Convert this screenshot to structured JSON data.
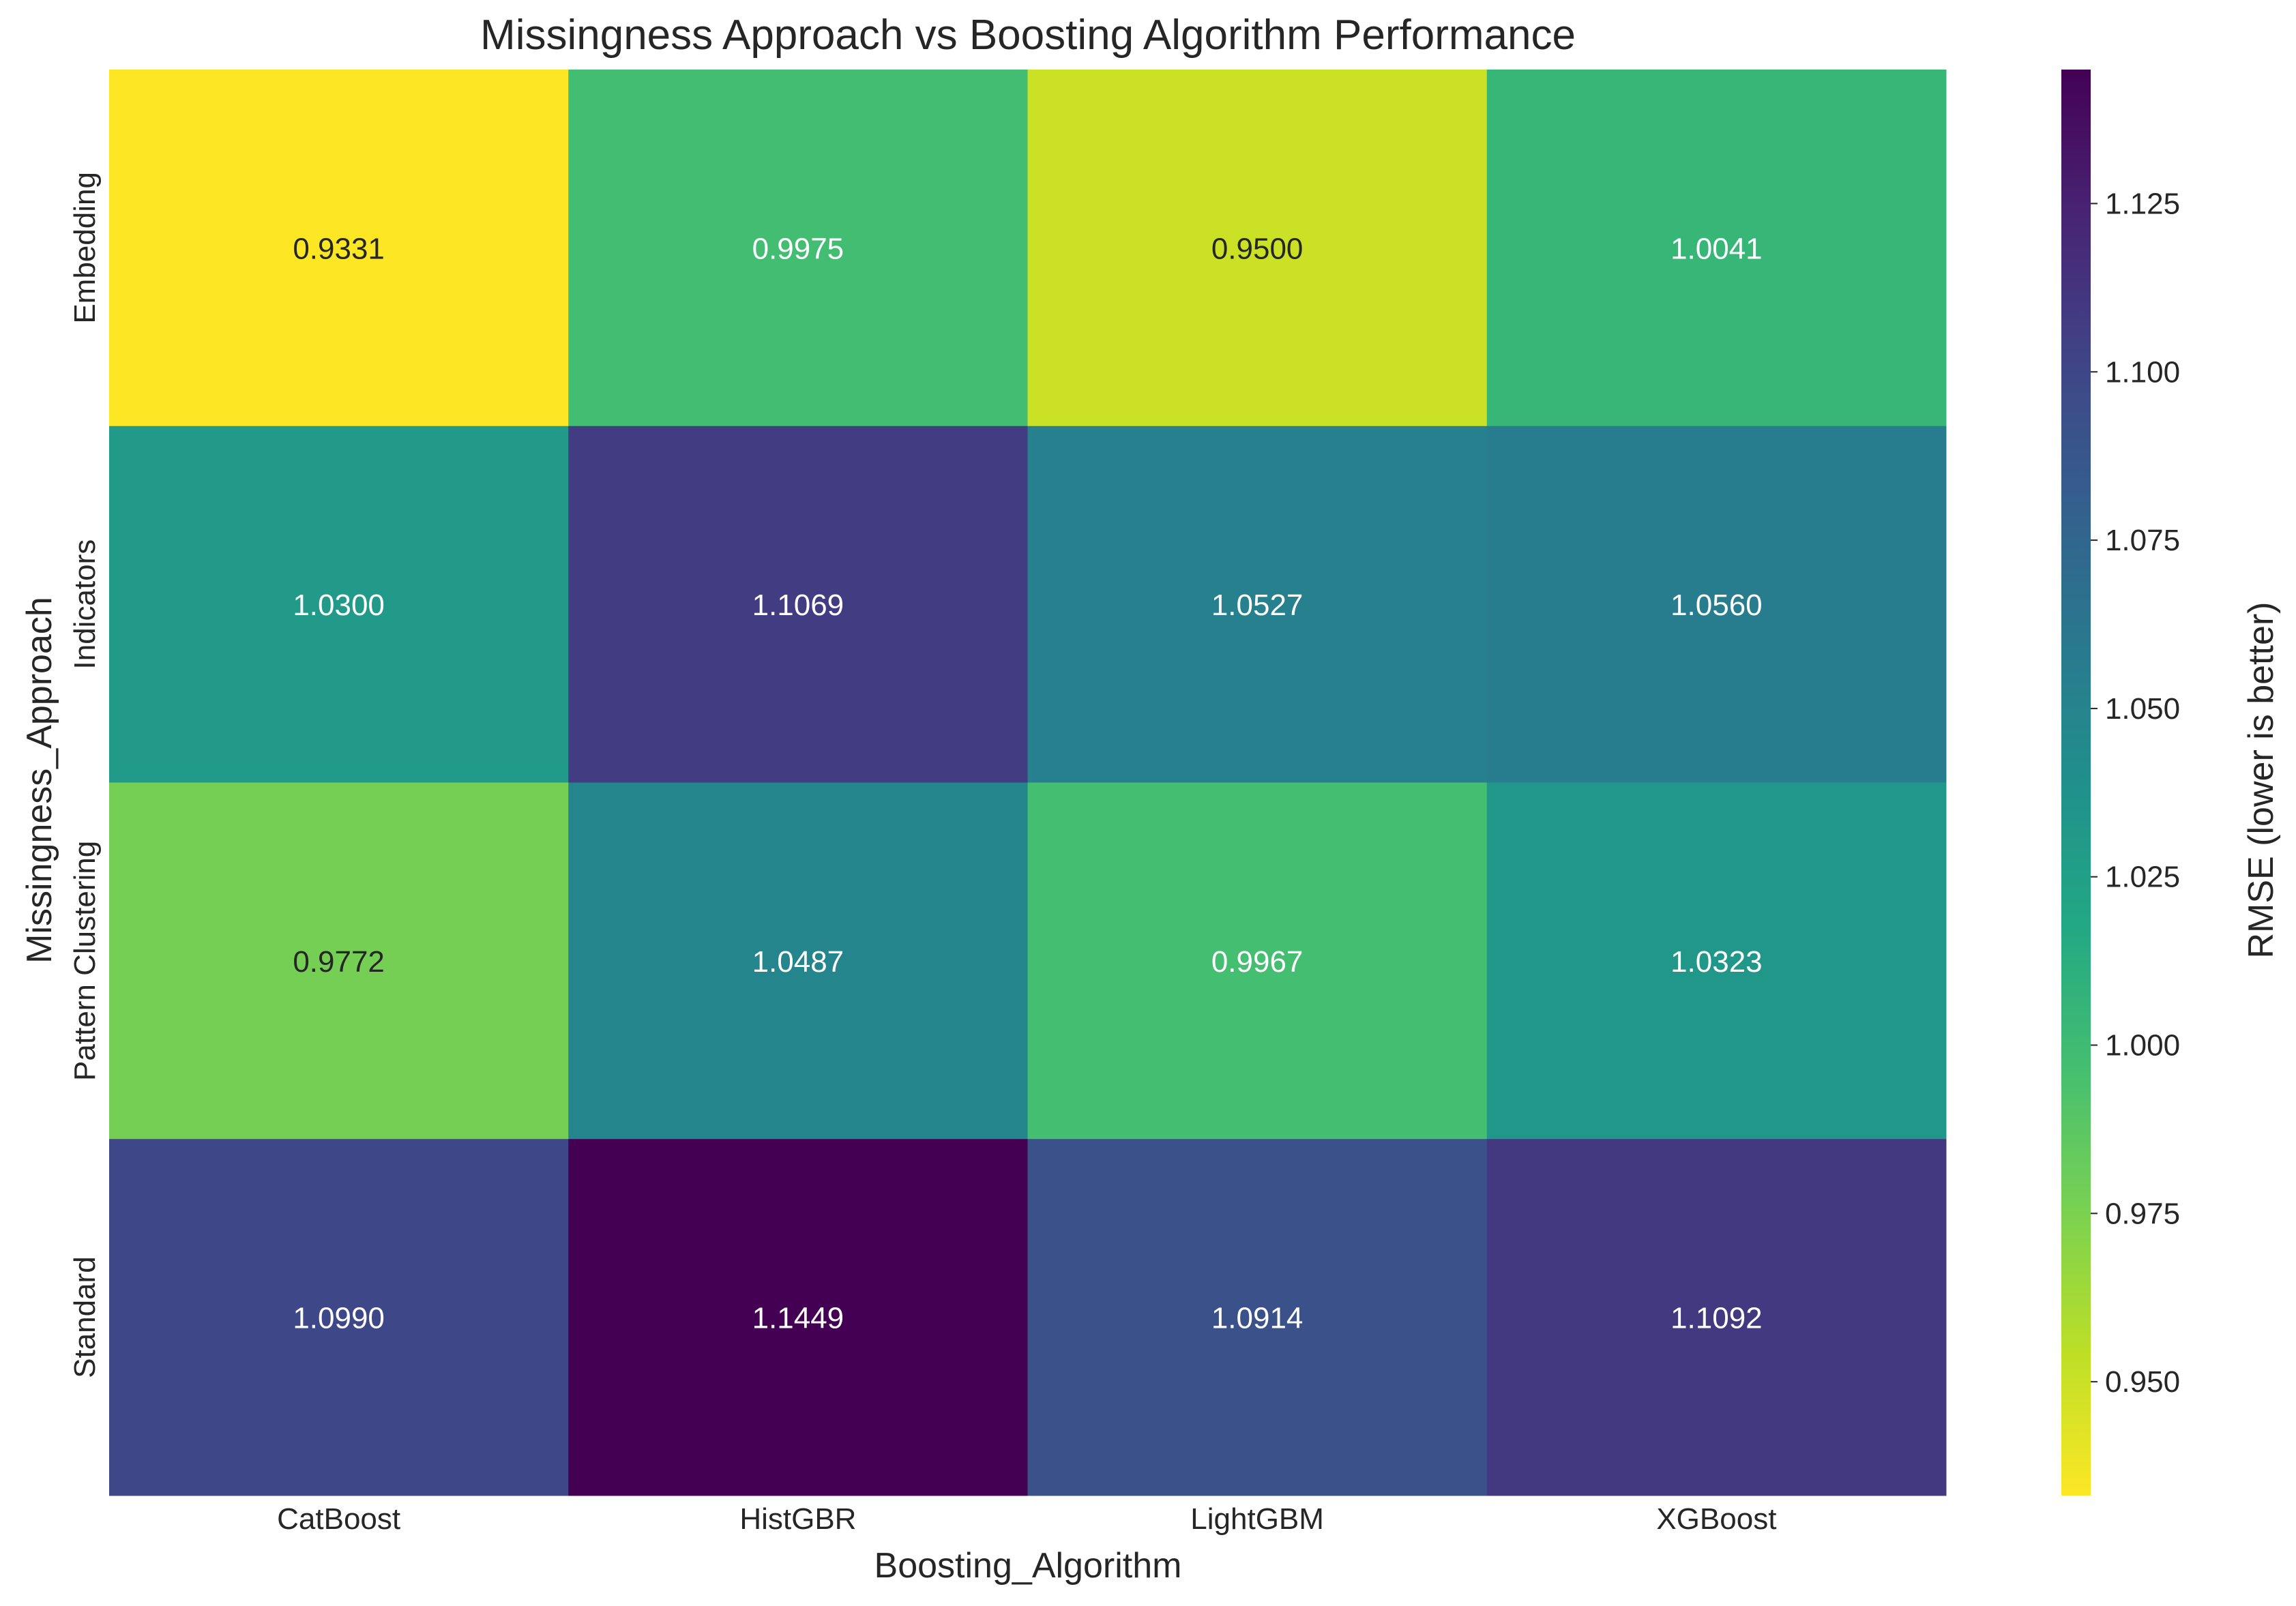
{
  "chart_data": {
    "type": "heatmap",
    "title": "Missingness Approach vs Boosting Algorithm Performance",
    "xlabel": "Boosting_Algorithm",
    "ylabel": "Missingness_Approach",
    "x_categories": [
      "CatBoost",
      "HistGBR",
      "LightGBM",
      "XGBoost"
    ],
    "y_categories": [
      "Embedding",
      "Indicators",
      "Pattern Clustering",
      "Standard"
    ],
    "values": [
      [
        0.9331,
        0.9975,
        0.95,
        1.0041
      ],
      [
        1.03,
        1.1069,
        1.0527,
        1.056
      ],
      [
        0.9772,
        1.0487,
        0.9967,
        1.0323
      ],
      [
        1.099,
        1.1449,
        1.0914,
        1.1092
      ]
    ],
    "value_format": "0.0000",
    "colormap": "viridis_r",
    "colorbar": {
      "label": "RMSE (lower is better)",
      "vmin": 0.9331,
      "vmax": 1.1449,
      "ticks": [
        0.95,
        0.975,
        1.0,
        1.025,
        1.05,
        1.075,
        1.1,
        1.125
      ],
      "tick_labels": [
        "0.950",
        "0.975",
        "1.000",
        "1.025",
        "1.050",
        "1.075",
        "1.100",
        "1.125"
      ]
    },
    "grid": false
  }
}
